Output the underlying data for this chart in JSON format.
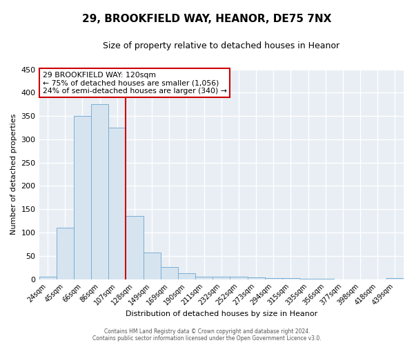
{
  "title1": "29, BROOKFIELD WAY, HEANOR, DE75 7NX",
  "title2": "Size of property relative to detached houses in Heanor",
  "xlabel": "Distribution of detached houses by size in Heanor",
  "ylabel": "Number of detached properties",
  "bin_labels": [
    "24sqm",
    "45sqm",
    "66sqm",
    "86sqm",
    "107sqm",
    "128sqm",
    "149sqm",
    "169sqm",
    "190sqm",
    "211sqm",
    "232sqm",
    "252sqm",
    "273sqm",
    "294sqm",
    "315sqm",
    "335sqm",
    "356sqm",
    "377sqm",
    "398sqm",
    "418sqm",
    "439sqm"
  ],
  "bin_values": [
    5,
    111,
    350,
    375,
    325,
    135,
    57,
    26,
    13,
    6,
    6,
    6,
    4,
    2,
    2,
    1,
    1,
    0,
    0,
    0,
    3
  ],
  "bar_color": "#d6e4f0",
  "bar_edge_color": "#7aaed4",
  "vline_color": "#cc0000",
  "vline_x_index": 4,
  "ylim": [
    0,
    450
  ],
  "yticks": [
    0,
    50,
    100,
    150,
    200,
    250,
    300,
    350,
    400,
    450
  ],
  "annotation_title": "29 BROOKFIELD WAY: 120sqm",
  "annotation_line1": "← 75% of detached houses are smaller (1,056)",
  "annotation_line2": "24% of semi-detached houses are larger (340) →",
  "annotation_box_color": "white",
  "annotation_box_edge": "#cc0000",
  "footer1": "Contains HM Land Registry data © Crown copyright and database right 2024.",
  "footer2": "Contains public sector information licensed under the Open Government Licence v3.0.",
  "plot_bg_color": "#e8eef4",
  "fig_bg_color": "#ffffff",
  "grid_color": "#ffffff",
  "title1_fontsize": 11,
  "title2_fontsize": 9
}
